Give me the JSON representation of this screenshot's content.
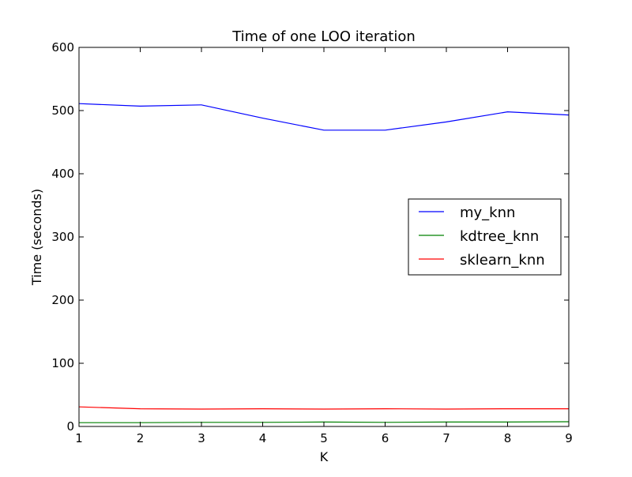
{
  "chart_data": {
    "type": "line",
    "title": "Time of one LOO iteration",
    "xlabel": "K",
    "ylabel": "Time (seconds)",
    "xlim": [
      1,
      9
    ],
    "ylim": [
      0,
      600
    ],
    "x_ticks": [
      1,
      2,
      3,
      4,
      5,
      6,
      7,
      8,
      9
    ],
    "y_ticks": [
      0,
      100,
      200,
      300,
      400,
      500,
      600
    ],
    "grid": false,
    "legend_position": "center-right",
    "x": [
      1,
      2,
      3,
      4,
      5,
      6,
      7,
      8,
      9
    ],
    "series": [
      {
        "name": "my_knn",
        "color": "#0000ff",
        "values": [
          511,
          507,
          509,
          488,
          469,
          469,
          482,
          498,
          493
        ]
      },
      {
        "name": "kdtree_knn",
        "color": "#008000",
        "values": [
          6,
          6,
          6.5,
          6.5,
          7,
          6.5,
          7,
          7,
          7.5
        ]
      },
      {
        "name": "sklearn_knn",
        "color": "#ff0000",
        "values": [
          31,
          28,
          27.5,
          28,
          27.5,
          28,
          27.5,
          28,
          28
        ]
      }
    ]
  }
}
